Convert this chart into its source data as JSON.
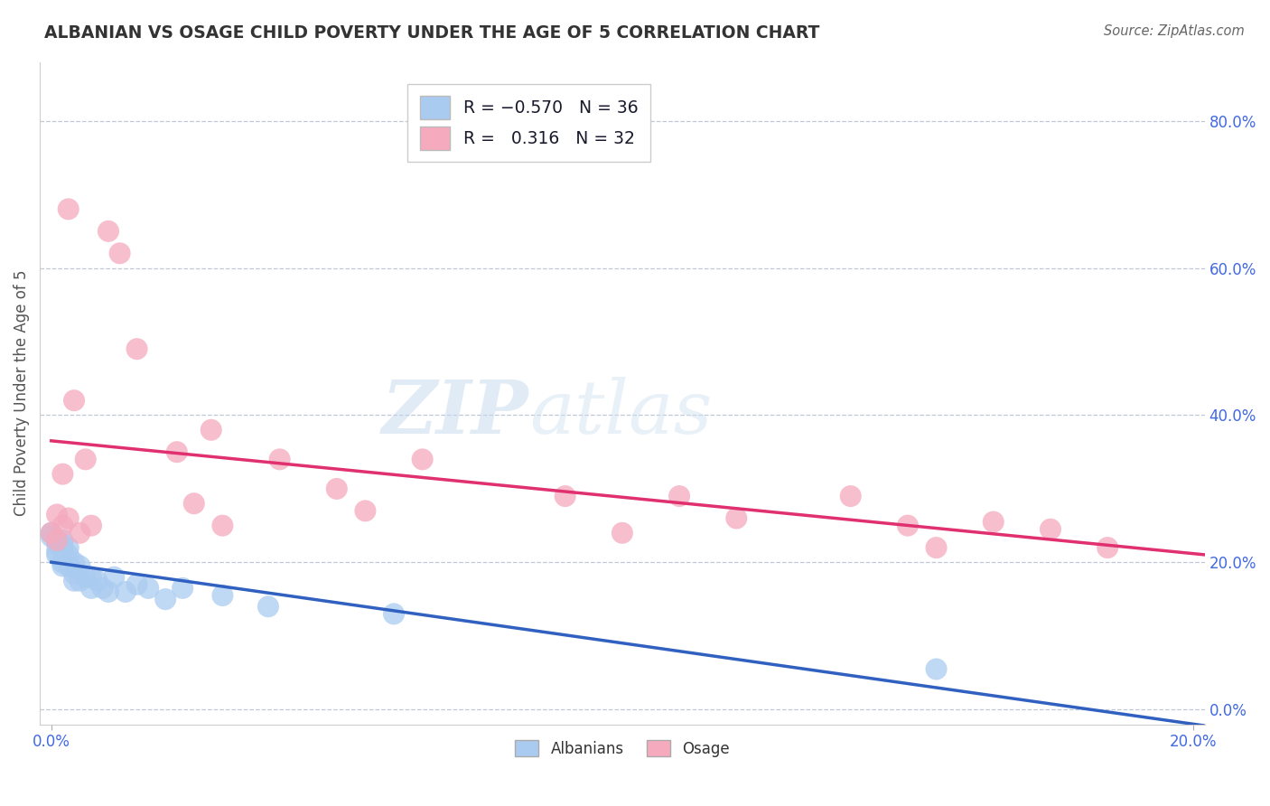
{
  "title": "ALBANIAN VS OSAGE CHILD POVERTY UNDER THE AGE OF 5 CORRELATION CHART",
  "source": "Source: ZipAtlas.com",
  "ylabel": "Child Poverty Under the Age of 5",
  "xlim": [
    -0.002,
    0.202
  ],
  "ylim": [
    -0.02,
    0.88
  ],
  "x_ticks": [
    0.0,
    0.2
  ],
  "x_tick_labels": [
    "0.0%",
    "20.0%"
  ],
  "y_ticks_right": [
    0.0,
    0.2,
    0.4,
    0.6,
    0.8
  ],
  "y_tick_labels_right": [
    "0.0%",
    "20.0%",
    "40.0%",
    "60.0%",
    "80.0%"
  ],
  "albanian_R": -0.57,
  "albanian_N": 36,
  "osage_R": 0.316,
  "osage_N": 32,
  "albanian_color": "#aacbf0",
  "osage_color": "#f5aabe",
  "albanian_line_color": "#3060c0",
  "osage_line_color": "#e03070",
  "watermark_zip": "ZIP",
  "watermark_atlas": "atlas",
  "legend_labels": [
    "Albanians",
    "Osage"
  ],
  "albanian_x": [
    0.0,
    0.0,
    0.001,
    0.001,
    0.001,
    0.001,
    0.002,
    0.002,
    0.002,
    0.002,
    0.002,
    0.002,
    0.003,
    0.003,
    0.003,
    0.004,
    0.004,
    0.004,
    0.005,
    0.005,
    0.006,
    0.007,
    0.007,
    0.008,
    0.009,
    0.01,
    0.011,
    0.013,
    0.015,
    0.017,
    0.02,
    0.023,
    0.03,
    0.038,
    0.06,
    0.155
  ],
  "albanian_y": [
    0.235,
    0.24,
    0.23,
    0.225,
    0.215,
    0.21,
    0.23,
    0.225,
    0.218,
    0.215,
    0.2,
    0.195,
    0.22,
    0.21,
    0.195,
    0.2,
    0.185,
    0.175,
    0.195,
    0.175,
    0.18,
    0.18,
    0.165,
    0.175,
    0.165,
    0.16,
    0.18,
    0.16,
    0.17,
    0.165,
    0.15,
    0.165,
    0.155,
    0.14,
    0.13,
    0.055
  ],
  "osage_x": [
    0.0,
    0.001,
    0.001,
    0.002,
    0.002,
    0.003,
    0.003,
    0.004,
    0.005,
    0.006,
    0.007,
    0.01,
    0.012,
    0.015,
    0.022,
    0.025,
    0.028,
    0.03,
    0.04,
    0.05,
    0.055,
    0.065,
    0.09,
    0.1,
    0.11,
    0.12,
    0.14,
    0.15,
    0.155,
    0.165,
    0.175,
    0.185
  ],
  "osage_y": [
    0.24,
    0.265,
    0.23,
    0.32,
    0.25,
    0.68,
    0.26,
    0.42,
    0.24,
    0.34,
    0.25,
    0.65,
    0.62,
    0.49,
    0.35,
    0.28,
    0.38,
    0.25,
    0.34,
    0.3,
    0.27,
    0.34,
    0.29,
    0.24,
    0.29,
    0.26,
    0.29,
    0.25,
    0.22,
    0.255,
    0.245,
    0.22
  ]
}
